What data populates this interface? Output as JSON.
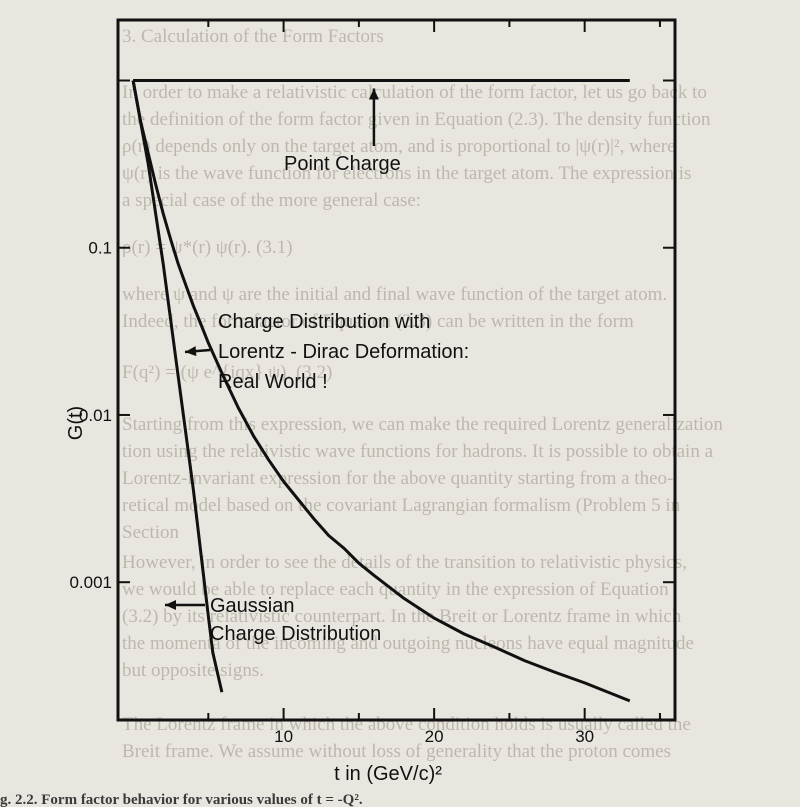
{
  "background_text": {
    "header": "3. Calculation of the Form Factors",
    "lines": [
      "In order to make a relativistic calculation of the form factor, let us go back to",
      "the definition of the form factor given in Equation (2.3). The density function",
      "ρ(r) depends only on the target atom, and is proportional to |ψ(r)|², where",
      "ψ(r) is the wave function for electrons in the target atom. The expression is",
      "a special case of the more general case:",
      "ρ(r) = ψ*(r) ψ(r).   (3.1)",
      "where ψ and ψ are the initial and final wave function of the target atom.",
      "Indeed, the form factor of Equation (2.3) can be written in the form",
      "F(q²) = (ψ e^{iqx} ψ).   (3.2)",
      "Starting from this expression, we can make the required Lorentz generalization",
      "tion using the relativistic wave functions for hadrons. It is possible to obtain a",
      "Lorentz-invariant expression for the above quantity starting from a theo-",
      "retical model based on the covariant Lagrangian formalism (Problem 5 in",
      "Section",
      "However, in order to see the details of the transition to relativistic physics,",
      "we would be able to replace each quantity in the expression of Equation",
      "(3.2) by its relativistic counterpart. In the Breit or Lorentz frame in which",
      "the momenta of the incoming and outgoing nucleons have equal magnitude",
      "but opposite signs.",
      "The Lorentz frame in which the above condition holds is usually called the",
      "Breit frame. We assume without loss of generality that the proton comes"
    ],
    "caption": "g. 2.2. Form factor behavior for various values of t = -Q²."
  },
  "chart_data": {
    "type": "line",
    "title": "",
    "xlabel": "t in (GeV/c)²",
    "ylabel": "G(t)",
    "x_ticks": [
      10,
      20,
      30
    ],
    "y_ticks": [
      {
        "value": 0.1,
        "label": "0.1"
      },
      {
        "value": 0.01,
        "label": "0.01"
      },
      {
        "value": 0.001,
        "label": "0.001"
      }
    ],
    "y_scale": "log",
    "xlim": [
      -1,
      36
    ],
    "ylim": [
      0.00015,
      2.3
    ],
    "grid": false,
    "series": [
      {
        "name": "Point Charge",
        "points": [
          [
            0,
            1
          ],
          [
            33,
            1
          ]
        ]
      },
      {
        "name": "Charge Distribution with Lorentz - Dirac Deformation: Real World !",
        "points": [
          [
            0,
            1
          ],
          [
            0.5,
            0.57
          ],
          [
            1,
            0.37
          ],
          [
            1.5,
            0.24
          ],
          [
            2,
            0.16
          ],
          [
            2.5,
            0.112
          ],
          [
            3,
            0.08
          ],
          [
            3.5,
            0.06
          ],
          [
            4,
            0.045
          ],
          [
            4.5,
            0.035
          ],
          [
            5,
            0.027
          ],
          [
            6,
            0.017
          ],
          [
            7,
            0.011
          ],
          [
            8,
            0.0075
          ],
          [
            9,
            0.0054
          ],
          [
            10,
            0.004
          ],
          [
            11,
            0.0031
          ],
          [
            12,
            0.0024
          ],
          [
            13,
            0.0019
          ],
          [
            14,
            0.0016
          ],
          [
            15,
            0.0013
          ],
          [
            16,
            0.0011
          ],
          [
            18,
            0.0008
          ],
          [
            20,
            0.00061
          ],
          [
            22,
            0.00049
          ],
          [
            24,
            0.00041
          ],
          [
            26,
            0.00034
          ],
          [
            28,
            0.00029
          ],
          [
            30,
            0.00025
          ],
          [
            33,
            0.000195
          ]
        ]
      },
      {
        "name": "Gaussian Charge Distribution",
        "points": [
          [
            0,
            1
          ],
          [
            1,
            0.32
          ],
          [
            2,
            0.08
          ],
          [
            3,
            0.017
          ],
          [
            4,
            0.0036
          ],
          [
            5,
            0.00063
          ],
          [
            5.3,
            0.00038
          ],
          [
            5.9,
            0.00022
          ]
        ]
      }
    ],
    "annotations": [
      {
        "text": "Point Charge",
        "arrow": "up",
        "target": [
          16,
          1
        ]
      },
      {
        "text": "Charge Distribution with",
        "arrow": "none"
      },
      {
        "text": "Lorentz - Dirac Deformation:",
        "arrow": "left"
      },
      {
        "text": "Real World !",
        "arrow": "none"
      },
      {
        "text": "Gaussian",
        "arrow": "left"
      },
      {
        "text": "Charge Distribution",
        "arrow": "none"
      }
    ]
  }
}
